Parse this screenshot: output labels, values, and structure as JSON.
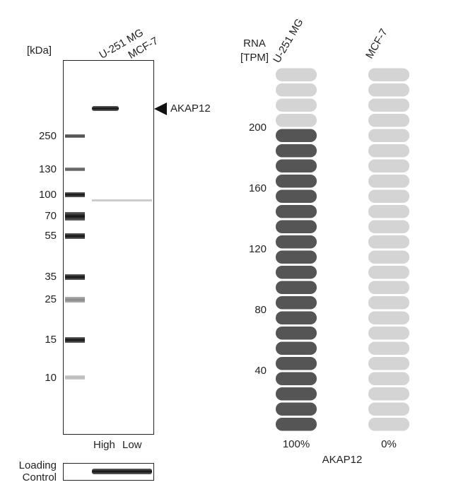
{
  "western_blot": {
    "kda_label": "[kDa]",
    "lanes": [
      "U-251 MG",
      "MCF-7"
    ],
    "markers": [
      250,
      130,
      100,
      70,
      55,
      35,
      25,
      15,
      10
    ],
    "band_label": "AKAP12",
    "level_labels": [
      "High",
      "Low"
    ],
    "loading_control": [
      "Loading",
      "Control"
    ]
  },
  "chart_data": {
    "type": "pill-bar",
    "ylabel": [
      "RNA",
      "[TPM]"
    ],
    "categories": [
      "U-251 MG",
      "MCF-7"
    ],
    "values": [
      200,
      0
    ],
    "relative_labels": [
      "100%",
      "0%"
    ],
    "xlabel": "AKAP12",
    "ylim": [
      0,
      240
    ],
    "yticks": [
      40,
      80,
      120,
      160,
      200
    ],
    "color": "#555555",
    "empty_color": "#d4d4d4"
  }
}
